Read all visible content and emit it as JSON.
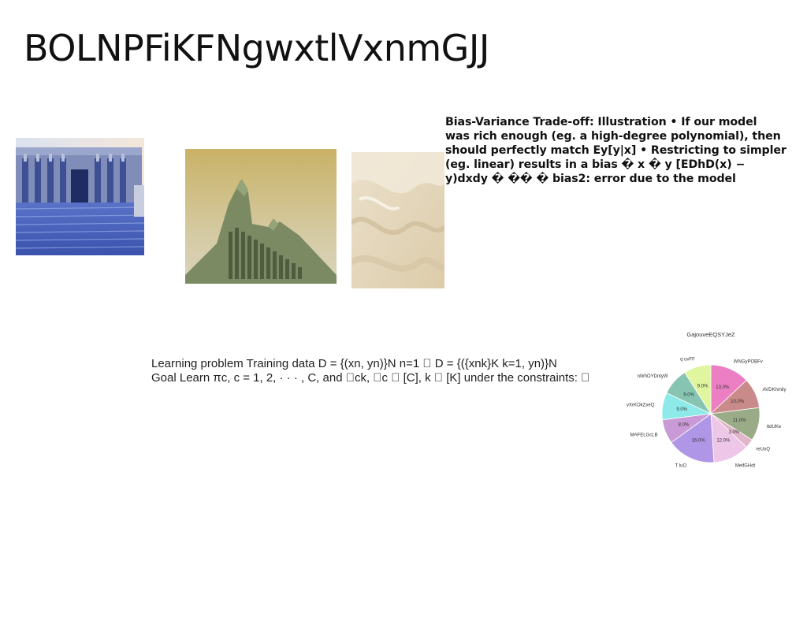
{
  "slide": {
    "title": "BOLNPFiKFNgwxtlVxnmGJJ",
    "bias_text": "Bias-Variance Trade-off: Illustration • If our model\nwas rich enough (eg. a high-degree polynomial), then\nshould perfectly match Ey[y|x] • Restricting to simpler\n(eg. linear) results in a bias � x � y [EDhD(x) −\ny)dxdy � �� � bias2: error due to the model",
    "learning_text": "Learning problem Training data D = {(xn, yn)}N n=1 \u0000 D = {({xnk}K k=1, yn)}N\nGoal Learn πc, c = 1, 2, · · · , C, and \u0000ck, \u0000c \u0000 [C], k \u0000 [K] under the constraints: \u0000",
    "images": [
      {
        "name": "temple-photo"
      },
      {
        "name": "building-photo"
      },
      {
        "name": "dunes-photo"
      }
    ]
  },
  "chart_data": {
    "type": "pie",
    "title": "GajouveEQSYJeZ",
    "slices": [
      {
        "label": "WNGyPOBFv",
        "value": 13.0,
        "color": "#ec7fc4"
      },
      {
        "label": "AVDKhmily",
        "value": 10.0,
        "color": "#c98a8a"
      },
      {
        "label": "ttdUKe",
        "value": 11.0,
        "color": "#9aab87"
      },
      {
        "label": "reUoQ",
        "value": 3.0,
        "color": "#e2b6c8"
      },
      {
        "label": "MeifGHdt",
        "value": 12.0,
        "color": "#edc6e8"
      },
      {
        "label": "T luO",
        "value": 16.0,
        "color": "#b096e6"
      },
      {
        "label": "MAFELGcLB",
        "value": 8.0,
        "color": "#c99ad6"
      },
      {
        "label": "vXrKOkZxeQ",
        "value": 9.0,
        "color": "#8eeae8"
      },
      {
        "label": "nWhOYDntyW",
        "value": 9.0,
        "color": "#87c4b2"
      },
      {
        "label": "q uvFF",
        "value": 9.0,
        "color": "#dff59e"
      }
    ]
  }
}
